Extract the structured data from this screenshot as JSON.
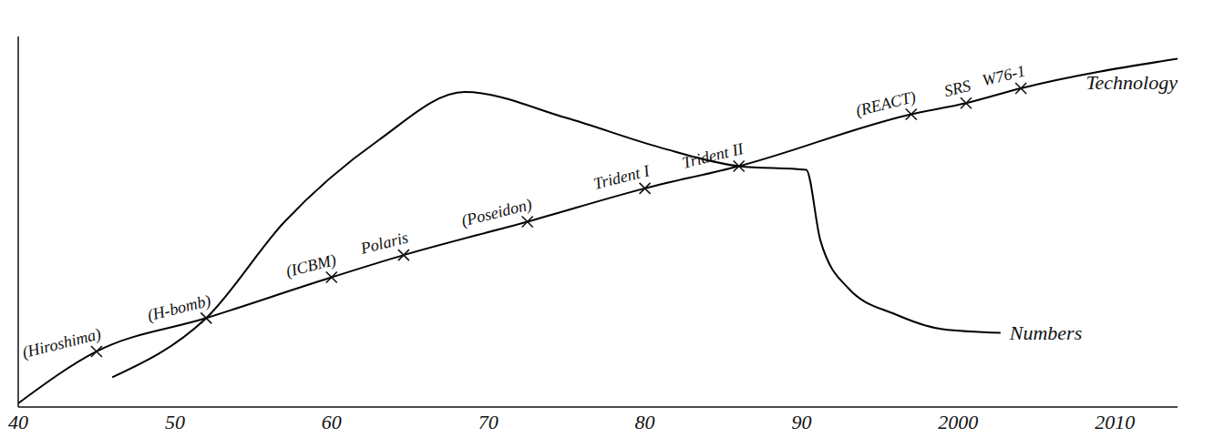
{
  "chart_data": {
    "type": "line",
    "xlim": [
      1940,
      2014
    ],
    "xticks": [
      {
        "value": 1940,
        "label": "40"
      },
      {
        "value": 1950,
        "label": "50"
      },
      {
        "value": 1960,
        "label": "60"
      },
      {
        "value": 1970,
        "label": "70"
      },
      {
        "value": 1980,
        "label": "80"
      },
      {
        "value": 1990,
        "label": "90"
      },
      2000,
      2010
    ],
    "ylim": [
      0,
      100
    ],
    "tick_labels": "x",
    "grid": false,
    "series": [
      {
        "name": "Technology",
        "color": "#000000",
        "line_style": "solid",
        "x": [
          1940,
          1945,
          1952,
          1960,
          1964.6,
          1972.5,
          1980,
          1986,
          1997,
          2000.5,
          2004,
          2014
        ],
        "values": [
          1,
          15,
          24,
          35,
          41,
          50,
          59,
          65,
          79,
          82,
          86,
          94
        ]
      },
      {
        "name": "Numbers",
        "color": "#000000",
        "line_style": "solid",
        "x": [
          1946,
          1952,
          1957,
          1963,
          1968.5,
          1975,
          1981,
          1986,
          1990.3,
          1991.2,
          1993,
          1996,
          1999,
          2002.7
        ],
        "values": [
          8,
          24,
          50,
          72,
          85,
          78,
          70,
          65,
          64,
          45,
          32,
          25,
          21,
          20
        ]
      }
    ],
    "annotations": [
      {
        "text": "(Hiroshima)",
        "x": 1945,
        "series": "Technology",
        "marker": "x"
      },
      {
        "text": "(H-bomb)",
        "x": 1952,
        "series": "Technology",
        "marker": "x"
      },
      {
        "text": "(ICBM)",
        "x": 1960,
        "series": "Technology",
        "marker": "x"
      },
      {
        "text": "Polaris",
        "x": 1964.6,
        "series": "Technology",
        "marker": "x"
      },
      {
        "text": "(Poseidon)",
        "x": 1972.5,
        "series": "Technology",
        "marker": "x"
      },
      {
        "text": "Trident I",
        "x": 1980,
        "series": "Technology",
        "marker": "x"
      },
      {
        "text": "Trident II",
        "x": 1986,
        "series": "Technology",
        "marker": "x"
      },
      {
        "text": "(REACT)",
        "x": 1997,
        "series": "Technology",
        "marker": "x"
      },
      {
        "text": "SRS",
        "x": 2000.5,
        "series": "Technology",
        "marker": "x"
      },
      {
        "text": "W76-1",
        "x": 2004,
        "series": "Technology",
        "marker": "x"
      }
    ]
  }
}
